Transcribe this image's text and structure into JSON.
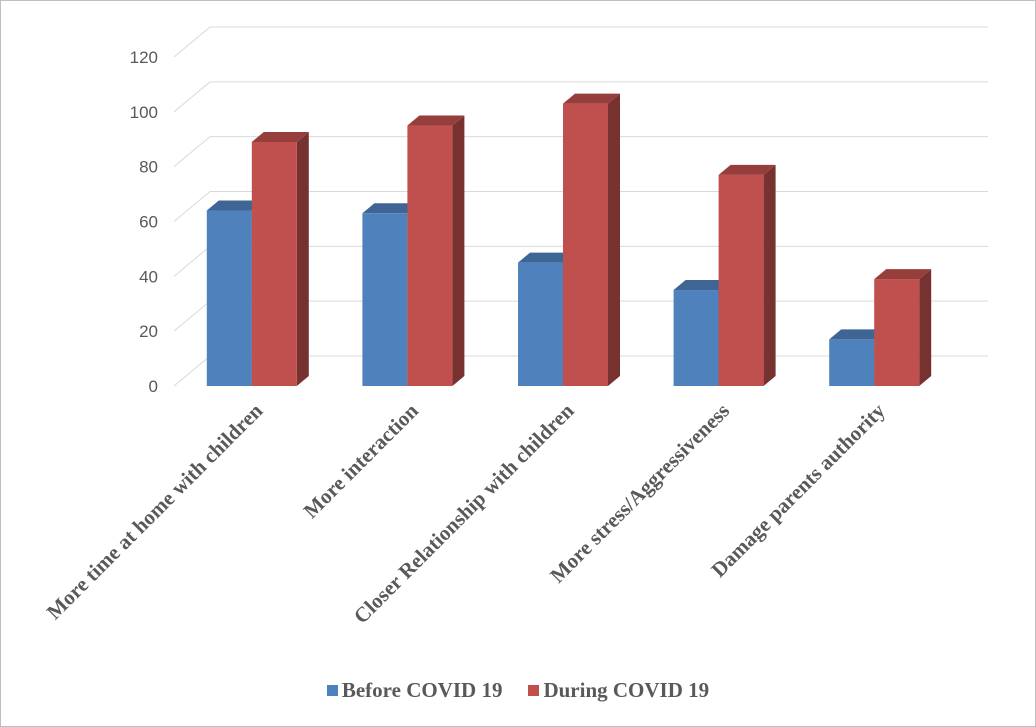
{
  "chart_data": {
    "type": "bar",
    "title": "",
    "xlabel": "",
    "ylabel": "",
    "categories": [
      "More time at home with children",
      "More interaction",
      "Closer Relationship with children",
      "More stress/Aggressiveness",
      "Damage parents authority"
    ],
    "series": [
      {
        "name": "Before COVID 19",
        "values": [
          64,
          63,
          45,
          35,
          17
        ],
        "color": "#4f81bd"
      },
      {
        "name": "During COVID 19",
        "values": [
          89,
          95,
          103,
          77,
          39
        ],
        "color": "#c0504d"
      }
    ],
    "ylim": [
      0,
      120
    ],
    "yticks": [
      0,
      20,
      40,
      60,
      80,
      100,
      120
    ],
    "grid": true,
    "legend_position": "bottom",
    "style": "3d-clustered-column"
  }
}
